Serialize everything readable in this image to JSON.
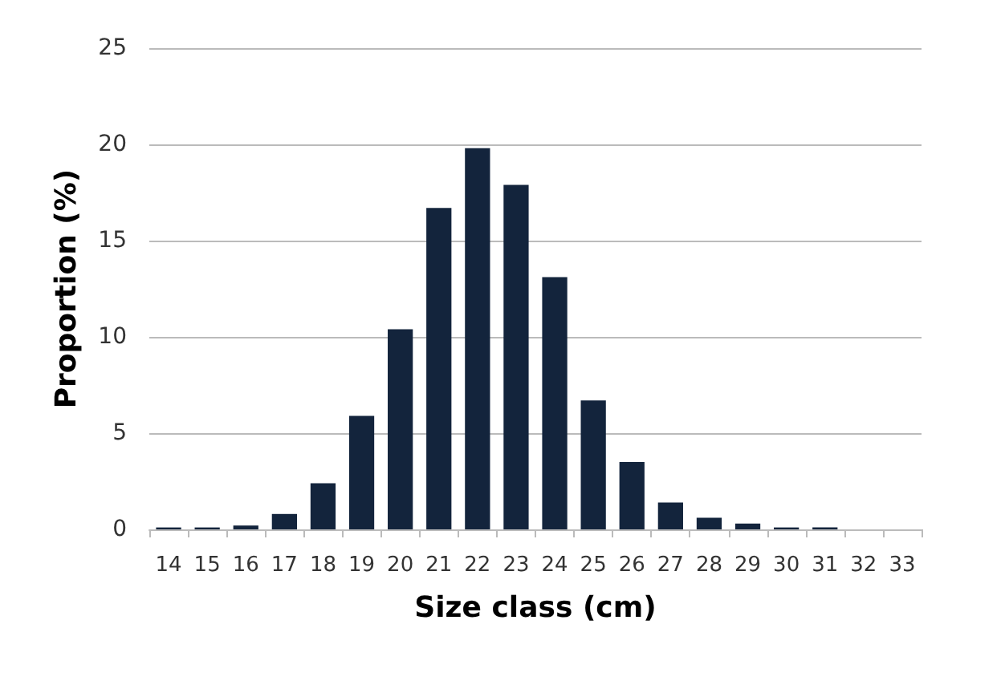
{
  "chart_data": {
    "type": "bar",
    "xlabel": "Size class (cm)",
    "ylabel": "Proportion (%)",
    "categories": [
      "14",
      "15",
      "16",
      "17",
      "18",
      "19",
      "20",
      "21",
      "22",
      "23",
      "24",
      "25",
      "26",
      "27",
      "28",
      "29",
      "30",
      "31",
      "32",
      "33"
    ],
    "values": [
      0.1,
      0.1,
      0.2,
      0.8,
      2.4,
      5.9,
      10.4,
      16.7,
      19.8,
      17.9,
      13.1,
      6.7,
      3.5,
      1.4,
      0.6,
      0.3,
      0.1,
      0.1,
      0,
      0
    ],
    "color": "#13243c",
    "ylim": [
      0,
      25
    ],
    "yticks": [
      0,
      5,
      10,
      15,
      20,
      25
    ],
    "grid": "y"
  }
}
